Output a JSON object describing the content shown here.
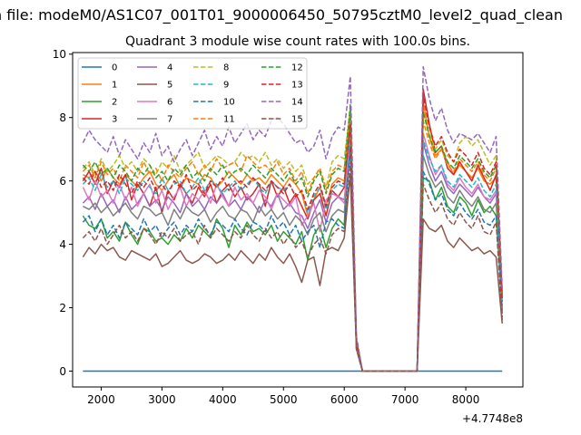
{
  "figure": {
    "suptitle": "n file: modeM0/AS1C07_001T01_9000006450_50795cztM0_level2_quad_clean",
    "title": "Quadrant 3 module wise count rates with 100.0s bins.",
    "offset_label": "+4.7748e8"
  },
  "chart_data": {
    "type": "line",
    "title": "Quadrant 3 module wise count rates with 100.0s bins.",
    "xlabel": "",
    "ylabel": "",
    "x_offset": 477480000,
    "x": [
      1700,
      1800,
      1900,
      2000,
      2100,
      2200,
      2300,
      2400,
      2500,
      2600,
      2700,
      2800,
      2900,
      3000,
      3100,
      3200,
      3300,
      3400,
      3500,
      3600,
      3700,
      3800,
      3900,
      4000,
      4100,
      4200,
      4300,
      4400,
      4500,
      4600,
      4700,
      4800,
      4900,
      5000,
      5100,
      5200,
      5300,
      5400,
      5500,
      5600,
      5700,
      5800,
      5900,
      6000,
      6100,
      6200,
      6300,
      6400,
      6500,
      6600,
      6700,
      6800,
      6900,
      7000,
      7100,
      7200,
      7300,
      7400,
      7500,
      7600,
      7700,
      7800,
      7900,
      8000,
      8100,
      8200,
      8300,
      8400,
      8500,
      8600
    ],
    "xlim": [
      1530,
      8940
    ],
    "ylim": [
      -0.5,
      10.05
    ],
    "xticks": [
      2000,
      3000,
      4000,
      5000,
      6000,
      7000,
      8000
    ],
    "yticks": [
      0,
      2,
      4,
      6,
      8,
      10
    ],
    "grid": false,
    "legend": {
      "placement": "top-left",
      "columns": 4
    },
    "series": [
      {
        "name": "0",
        "color": "#1f77b4",
        "dash": "solid",
        "values": [
          0,
          0,
          0,
          0,
          0,
          0,
          0,
          0,
          0,
          0,
          0,
          0,
          0,
          0,
          0,
          0,
          0,
          0,
          0,
          0,
          0,
          0,
          0,
          0,
          0,
          0,
          0,
          0,
          0,
          0,
          0,
          0,
          0,
          0,
          0,
          0,
          0,
          0,
          0,
          0,
          0,
          0,
          0,
          0,
          0,
          0,
          0,
          0,
          0,
          0,
          0,
          0,
          0,
          0,
          0,
          0,
          0,
          0,
          0,
          0,
          0,
          0,
          0,
          0,
          0,
          0,
          0,
          0,
          0,
          0
        ]
      },
      {
        "name": "1",
        "color": "#ff7f0e",
        "dash": "solid",
        "values": [
          6.2,
          6.1,
          6.3,
          6.0,
          6.4,
          6.1,
          5.9,
          6.2,
          6.0,
          5.8,
          6.1,
          6.3,
          5.9,
          5.7,
          6.0,
          6.2,
          5.8,
          6.1,
          6.0,
          5.9,
          6.2,
          6.1,
          5.8,
          6.0,
          6.3,
          6.1,
          5.9,
          6.2,
          6.0,
          6.1,
          5.9,
          6.2,
          6.0,
          5.8,
          6.1,
          5.9,
          5.6,
          4.9,
          5.4,
          5.8,
          5.2,
          5.9,
          6.1,
          6.0,
          8.0,
          0.9,
          0,
          0,
          0,
          0,
          0,
          0,
          0,
          0,
          0,
          0,
          8.5,
          7.4,
          6.8,
          7.0,
          6.6,
          6.2,
          6.5,
          6.3,
          6.1,
          6.4,
          6.0,
          5.9,
          6.1,
          2.2
        ]
      },
      {
        "name": "2",
        "color": "#2ca02c",
        "dash": "solid",
        "values": [
          4.9,
          4.6,
          4.5,
          4.8,
          4.2,
          4.4,
          4.1,
          4.7,
          4.3,
          4.0,
          4.5,
          4.4,
          4.1,
          4.2,
          4.0,
          4.3,
          4.1,
          4.5,
          4.2,
          4.6,
          4.4,
          4.2,
          4.8,
          4.5,
          3.9,
          4.6,
          4.3,
          4.7,
          4.4,
          4.5,
          4.3,
          4.6,
          4.1,
          4.4,
          4.2,
          4.0,
          4.4,
          3.5,
          4.3,
          4.6,
          3.9,
          4.5,
          4.8,
          4.6,
          8.2,
          0.8,
          0,
          0,
          0,
          0,
          0,
          0,
          0,
          0,
          0,
          0,
          6.1,
          6.0,
          5.4,
          5.8,
          5.2,
          5.0,
          5.5,
          5.3,
          4.9,
          5.4,
          5.0,
          5.2,
          4.9,
          2.0
        ]
      },
      {
        "name": "3",
        "color": "#d62728",
        "dash": "solid",
        "values": [
          6.0,
          6.3,
          5.9,
          6.4,
          5.6,
          6.0,
          5.8,
          6.2,
          5.4,
          5.9,
          5.6,
          5.2,
          5.8,
          5.0,
          5.7,
          5.4,
          5.9,
          5.6,
          5.3,
          5.8,
          5.5,
          5.9,
          5.3,
          5.7,
          5.9,
          5.5,
          5.8,
          5.4,
          5.6,
          5.9,
          5.2,
          6.0,
          5.5,
          5.8,
          5.3,
          5.6,
          5.2,
          4.8,
          5.4,
          5.6,
          4.9,
          5.7,
          5.5,
          5.8,
          7.6,
          0.9,
          0,
          0,
          0,
          0,
          0,
          0,
          0,
          0,
          0,
          0,
          8.9,
          7.8,
          6.9,
          7.1,
          6.4,
          6.2,
          6.6,
          6.3,
          6.0,
          6.5,
          6.1,
          5.7,
          6.2,
          2.3
        ]
      },
      {
        "name": "4",
        "color": "#9467bd",
        "dash": "solid",
        "values": [
          5.3,
          5.5,
          5.1,
          5.6,
          5.2,
          5.4,
          5.0,
          5.5,
          5.1,
          5.3,
          5.6,
          5.2,
          5.4,
          5.1,
          5.5,
          5.3,
          5.0,
          5.6,
          5.2,
          5.4,
          5.1,
          5.5,
          5.3,
          5.6,
          5.2,
          5.4,
          5.1,
          5.5,
          5.3,
          5.0,
          5.4,
          5.2,
          5.6,
          5.1,
          5.3,
          5.0,
          4.9,
          4.5,
          5.0,
          5.4,
          4.7,
          5.3,
          5.5,
          5.4,
          7.3,
          0.8,
          0,
          0,
          0,
          0,
          0,
          0,
          0,
          0,
          0,
          0,
          7.2,
          6.5,
          6.0,
          6.3,
          5.8,
          5.6,
          5.9,
          5.7,
          5.5,
          5.8,
          5.5,
          5.3,
          5.6,
          1.9
        ]
      },
      {
        "name": "5",
        "color": "#8c564b",
        "dash": "solid",
        "values": [
          3.6,
          3.9,
          3.7,
          4.0,
          3.8,
          3.9,
          3.6,
          3.5,
          3.8,
          3.7,
          3.6,
          3.5,
          3.7,
          3.3,
          3.4,
          3.6,
          3.8,
          3.5,
          3.4,
          3.5,
          3.7,
          3.6,
          3.4,
          3.5,
          3.7,
          3.5,
          3.8,
          3.6,
          3.4,
          3.7,
          3.5,
          3.9,
          3.6,
          3.4,
          3.7,
          3.3,
          2.8,
          3.5,
          3.6,
          2.7,
          3.8,
          3.9,
          3.8,
          4.2,
          6.2,
          0.7,
          0,
          0,
          0,
          0,
          0,
          0,
          0,
          0,
          0,
          0,
          4.8,
          4.5,
          4.4,
          4.6,
          4.1,
          3.9,
          4.2,
          4.0,
          3.8,
          3.9,
          3.7,
          3.8,
          3.6,
          1.5
        ]
      },
      {
        "name": "6",
        "color": "#e377c2",
        "dash": "solid",
        "values": [
          5.8,
          5.4,
          6.0,
          5.5,
          5.7,
          5.3,
          5.9,
          5.4,
          5.8,
          5.2,
          5.6,
          5.9,
          5.3,
          5.7,
          5.1,
          5.5,
          5.8,
          5.2,
          5.6,
          5.4,
          5.7,
          5.3,
          5.9,
          5.5,
          5.2,
          5.8,
          5.4,
          5.6,
          5.3,
          5.7,
          5.5,
          5.1,
          5.6,
          5.4,
          5.2,
          5.5,
          4.6,
          4.9,
          5.3,
          4.4,
          5.4,
          5.6,
          5.5,
          5.3,
          7.4,
          0.8,
          0,
          0,
          0,
          0,
          0,
          0,
          0,
          0,
          0,
          0,
          7.5,
          6.8,
          6.2,
          6.5,
          5.9,
          5.7,
          6.1,
          5.8,
          5.6,
          5.9,
          5.5,
          5.4,
          5.7,
          2.0
        ]
      },
      {
        "name": "7",
        "color": "#7f7f7f",
        "dash": "solid",
        "values": [
          5.2,
          5.1,
          5.3,
          5.0,
          5.2,
          4.9,
          5.1,
          5.3,
          5.0,
          4.8,
          5.2,
          5.1,
          4.9,
          5.0,
          4.6,
          5.1,
          4.8,
          5.2,
          5.0,
          4.9,
          5.1,
          4.7,
          5.0,
          5.2,
          4.9,
          4.8,
          5.1,
          5.0,
          4.7,
          5.2,
          4.9,
          5.1,
          4.8,
          5.0,
          4.6,
          4.9,
          4.7,
          4.3,
          4.8,
          5.0,
          4.4,
          4.9,
          5.1,
          5.0,
          7.0,
          0.8,
          0,
          0,
          0,
          0,
          0,
          0,
          0,
          0,
          0,
          0,
          6.8,
          6.2,
          5.8,
          6.0,
          5.5,
          5.3,
          5.7,
          5.4,
          5.2,
          5.5,
          5.1,
          5.0,
          5.3,
          1.8
        ]
      },
      {
        "name": "8",
        "color": "#bcbd22",
        "dash": "dashed",
        "values": [
          6.4,
          6.6,
          6.2,
          6.7,
          6.3,
          6.5,
          6.8,
          6.4,
          6.6,
          6.3,
          6.7,
          6.5,
          6.2,
          6.6,
          6.4,
          6.8,
          6.3,
          6.5,
          6.7,
          6.9,
          6.4,
          6.6,
          6.8,
          6.7,
          6.5,
          6.6,
          6.9,
          6.7,
          6.8,
          6.6,
          6.9,
          6.5,
          6.7,
          6.4,
          6.6,
          6.3,
          6.5,
          5.9,
          6.1,
          6.4,
          5.8,
          6.6,
          6.8,
          6.7,
          8.3,
          1.0,
          0,
          0,
          0,
          0,
          0,
          0,
          0,
          0,
          0,
          0,
          8.1,
          7.5,
          7.0,
          7.3,
          6.8,
          6.6,
          7.2,
          7.4,
          7.1,
          7.3,
          6.9,
          6.5,
          6.8,
          2.4
        ]
      },
      {
        "name": "9",
        "color": "#17becf",
        "dash": "dashed",
        "values": [
          5.9,
          6.1,
          5.7,
          6.2,
          5.8,
          6.0,
          5.6,
          6.1,
          5.9,
          5.7,
          6.0,
          5.8,
          5.6,
          6.1,
          5.7,
          5.9,
          6.0,
          5.6,
          5.8,
          6.1,
          5.7,
          6.0,
          5.9,
          5.6,
          5.8,
          6.0,
          5.7,
          5.9,
          6.1,
          5.8,
          5.6,
          6.0,
          5.8,
          5.7,
          5.9,
          5.5,
          5.7,
          5.0,
          5.5,
          5.8,
          5.1,
          5.7,
          5.9,
          5.8,
          7.5,
          0.9,
          0,
          0,
          0,
          0,
          0,
          0,
          0,
          0,
          0,
          0,
          7.3,
          6.7,
          6.3,
          6.5,
          6.0,
          5.8,
          6.2,
          6.0,
          5.8,
          6.1,
          5.7,
          5.5,
          5.9,
          2.1
        ]
      },
      {
        "name": "10",
        "color": "#1f77b4",
        "dash": "dashed",
        "values": [
          4.7,
          4.9,
          4.4,
          4.8,
          4.3,
          4.6,
          4.2,
          4.7,
          4.5,
          4.3,
          4.8,
          4.4,
          4.6,
          4.2,
          4.5,
          4.7,
          4.3,
          4.6,
          4.4,
          4.8,
          4.5,
          4.3,
          4.7,
          4.6,
          4.4,
          4.8,
          4.5,
          4.3,
          4.7,
          4.6,
          4.4,
          4.9,
          4.5,
          4.7,
          4.3,
          4.6,
          4.1,
          4.4,
          4.6,
          3.9,
          4.7,
          4.8,
          4.6,
          4.5,
          7.1,
          0.7,
          0,
          0,
          0,
          0,
          0,
          0,
          0,
          0,
          0,
          0,
          6.3,
          5.9,
          5.4,
          5.6,
          5.1,
          4.9,
          5.3,
          5.0,
          4.8,
          5.1,
          4.7,
          4.6,
          4.9,
          1.7
        ]
      },
      {
        "name": "11",
        "color": "#ff7f0e",
        "dash": "dashed",
        "values": [
          6.3,
          6.5,
          6.1,
          6.6,
          6.2,
          6.4,
          6.0,
          6.5,
          6.3,
          6.1,
          6.6,
          6.2,
          6.4,
          6.0,
          6.5,
          6.3,
          6.1,
          6.4,
          6.6,
          6.2,
          6.5,
          6.3,
          6.7,
          6.4,
          6.5,
          6.6,
          6.3,
          6.8,
          6.6,
          6.4,
          6.5,
          6.3,
          6.6,
          6.2,
          6.4,
          6.0,
          6.3,
          5.6,
          6.1,
          6.4,
          5.7,
          6.3,
          6.5,
          6.4,
          8.1,
          0.9,
          0,
          0,
          0,
          0,
          0,
          0,
          0,
          0,
          0,
          0,
          7.9,
          7.2,
          6.7,
          7.0,
          6.5,
          6.3,
          6.7,
          6.5,
          6.3,
          6.6,
          6.2,
          6.0,
          6.4,
          2.3
        ]
      },
      {
        "name": "12",
        "color": "#2ca02c",
        "dash": "dashed",
        "values": [
          6.5,
          6.3,
          6.6,
          6.2,
          6.4,
          6.1,
          6.5,
          6.3,
          6.0,
          6.4,
          6.2,
          6.5,
          6.1,
          6.3,
          6.0,
          6.4,
          6.2,
          6.5,
          6.1,
          6.3,
          6.0,
          6.4,
          6.2,
          6.5,
          6.1,
          6.3,
          6.4,
          6.2,
          6.5,
          6.3,
          6.1,
          6.4,
          6.2,
          6.0,
          6.3,
          5.9,
          6.1,
          5.5,
          6.0,
          6.3,
          5.6,
          6.2,
          6.4,
          6.3,
          8.4,
          1.0,
          0,
          0,
          0,
          0,
          0,
          0,
          0,
          0,
          0,
          0,
          8.2,
          7.4,
          6.9,
          7.1,
          6.6,
          6.4,
          6.8,
          6.6,
          6.4,
          6.7,
          6.3,
          6.1,
          6.5,
          2.4
        ]
      },
      {
        "name": "13",
        "color": "#d62728",
        "dash": "dashed",
        "values": [
          6.1,
          5.9,
          6.3,
          5.8,
          6.0,
          5.7,
          6.2,
          5.9,
          5.6,
          6.0,
          5.8,
          6.1,
          5.7,
          5.9,
          5.6,
          6.0,
          5.8,
          6.2,
          5.7,
          5.9,
          5.6,
          6.0,
          5.8,
          6.1,
          5.7,
          5.9,
          6.0,
          5.8,
          6.1,
          5.9,
          5.7,
          6.0,
          5.8,
          5.6,
          5.9,
          5.5,
          5.7,
          5.1,
          5.6,
          5.9,
          5.2,
          5.8,
          6.0,
          5.9,
          7.8,
          0.9,
          0,
          0,
          0,
          0,
          0,
          0,
          0,
          0,
          0,
          0,
          8.7,
          7.7,
          7.1,
          7.4,
          6.9,
          6.6,
          7.0,
          6.8,
          6.5,
          6.9,
          6.4,
          6.2,
          6.6,
          2.2
        ]
      },
      {
        "name": "14",
        "color": "#9467bd",
        "dash": "dashed",
        "values": [
          7.2,
          7.6,
          7.3,
          7.1,
          6.9,
          7.4,
          6.8,
          7.3,
          7.0,
          6.7,
          7.2,
          6.9,
          7.5,
          6.8,
          7.1,
          6.6,
          7.0,
          7.3,
          6.8,
          7.2,
          7.6,
          7.0,
          7.4,
          7.1,
          7.7,
          7.2,
          7.5,
          7.8,
          7.3,
          7.6,
          7.4,
          7.9,
          8.0,
          7.8,
          7.5,
          7.2,
          7.3,
          6.9,
          7.1,
          7.6,
          6.7,
          7.4,
          7.7,
          7.6,
          9.3,
          1.1,
          0,
          0,
          0,
          0,
          0,
          0,
          0,
          0,
          0,
          0,
          9.6,
          8.6,
          7.9,
          8.3,
          7.6,
          7.2,
          7.5,
          7.4,
          7.3,
          7.5,
          7.2,
          6.9,
          7.4,
          2.6
        ]
      },
      {
        "name": "15",
        "color": "#8c564b",
        "dash": "dashed",
        "values": [
          4.2,
          4.4,
          4.1,
          4.5,
          4.0,
          4.3,
          4.6,
          4.2,
          4.4,
          4.1,
          4.5,
          4.3,
          4.0,
          4.4,
          4.2,
          4.5,
          4.1,
          4.3,
          4.4,
          4.0,
          4.6,
          4.2,
          4.5,
          4.3,
          4.1,
          4.4,
          4.2,
          4.6,
          4.3,
          4.1,
          4.5,
          4.2,
          4.4,
          4.0,
          4.3,
          3.9,
          4.1,
          3.6,
          4.0,
          4.2,
          3.7,
          4.3,
          4.5,
          4.4,
          6.5,
          0.7,
          0,
          0,
          0,
          0,
          0,
          0,
          0,
          0,
          0,
          0,
          5.9,
          5.4,
          5.0,
          5.3,
          4.8,
          4.6,
          5.0,
          4.7,
          4.5,
          4.9,
          4.4,
          4.3,
          4.7,
          1.6
        ]
      }
    ]
  }
}
